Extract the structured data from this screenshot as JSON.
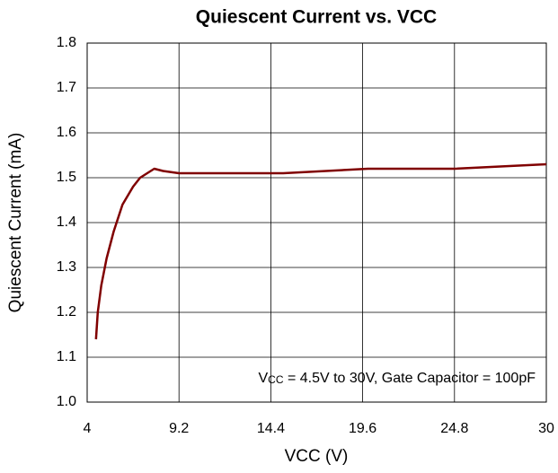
{
  "chart_data": {
    "type": "line",
    "title": "Quiescent Current vs. VCC",
    "x_label": "VCC (V)",
    "y_label": "Quiescent Current (mA)",
    "annotation": {
      "prefix": "V",
      "subscript": "CC",
      "text": " = 4.5V to 30V, Gate Capacitor = 100pF"
    },
    "x": [
      4.5,
      4.6,
      4.8,
      5.1,
      5.5,
      6.0,
      6.6,
      7.0,
      7.8,
      8.3,
      9.2,
      15.1,
      19.9,
      24.8,
      30
    ],
    "series": [
      {
        "name": "Quiescent Current",
        "color": "#800000",
        "values": [
          1.14,
          1.2,
          1.26,
          1.32,
          1.38,
          1.44,
          1.48,
          1.5,
          1.52,
          1.515,
          1.51,
          1.51,
          1.52,
          1.52,
          1.53
        ]
      }
    ],
    "xlim": [
      4,
      30
    ],
    "xticks": [
      4,
      9.2,
      14.4,
      19.6,
      24.8,
      30
    ],
    "ylim": [
      1.0,
      1.8
    ],
    "yticks": [
      {
        "value": 1.0,
        "label": "1.0"
      },
      1.1,
      1.2,
      1.3,
      1.4,
      1.5,
      1.6,
      1.7,
      1.8
    ],
    "grid": true
  }
}
